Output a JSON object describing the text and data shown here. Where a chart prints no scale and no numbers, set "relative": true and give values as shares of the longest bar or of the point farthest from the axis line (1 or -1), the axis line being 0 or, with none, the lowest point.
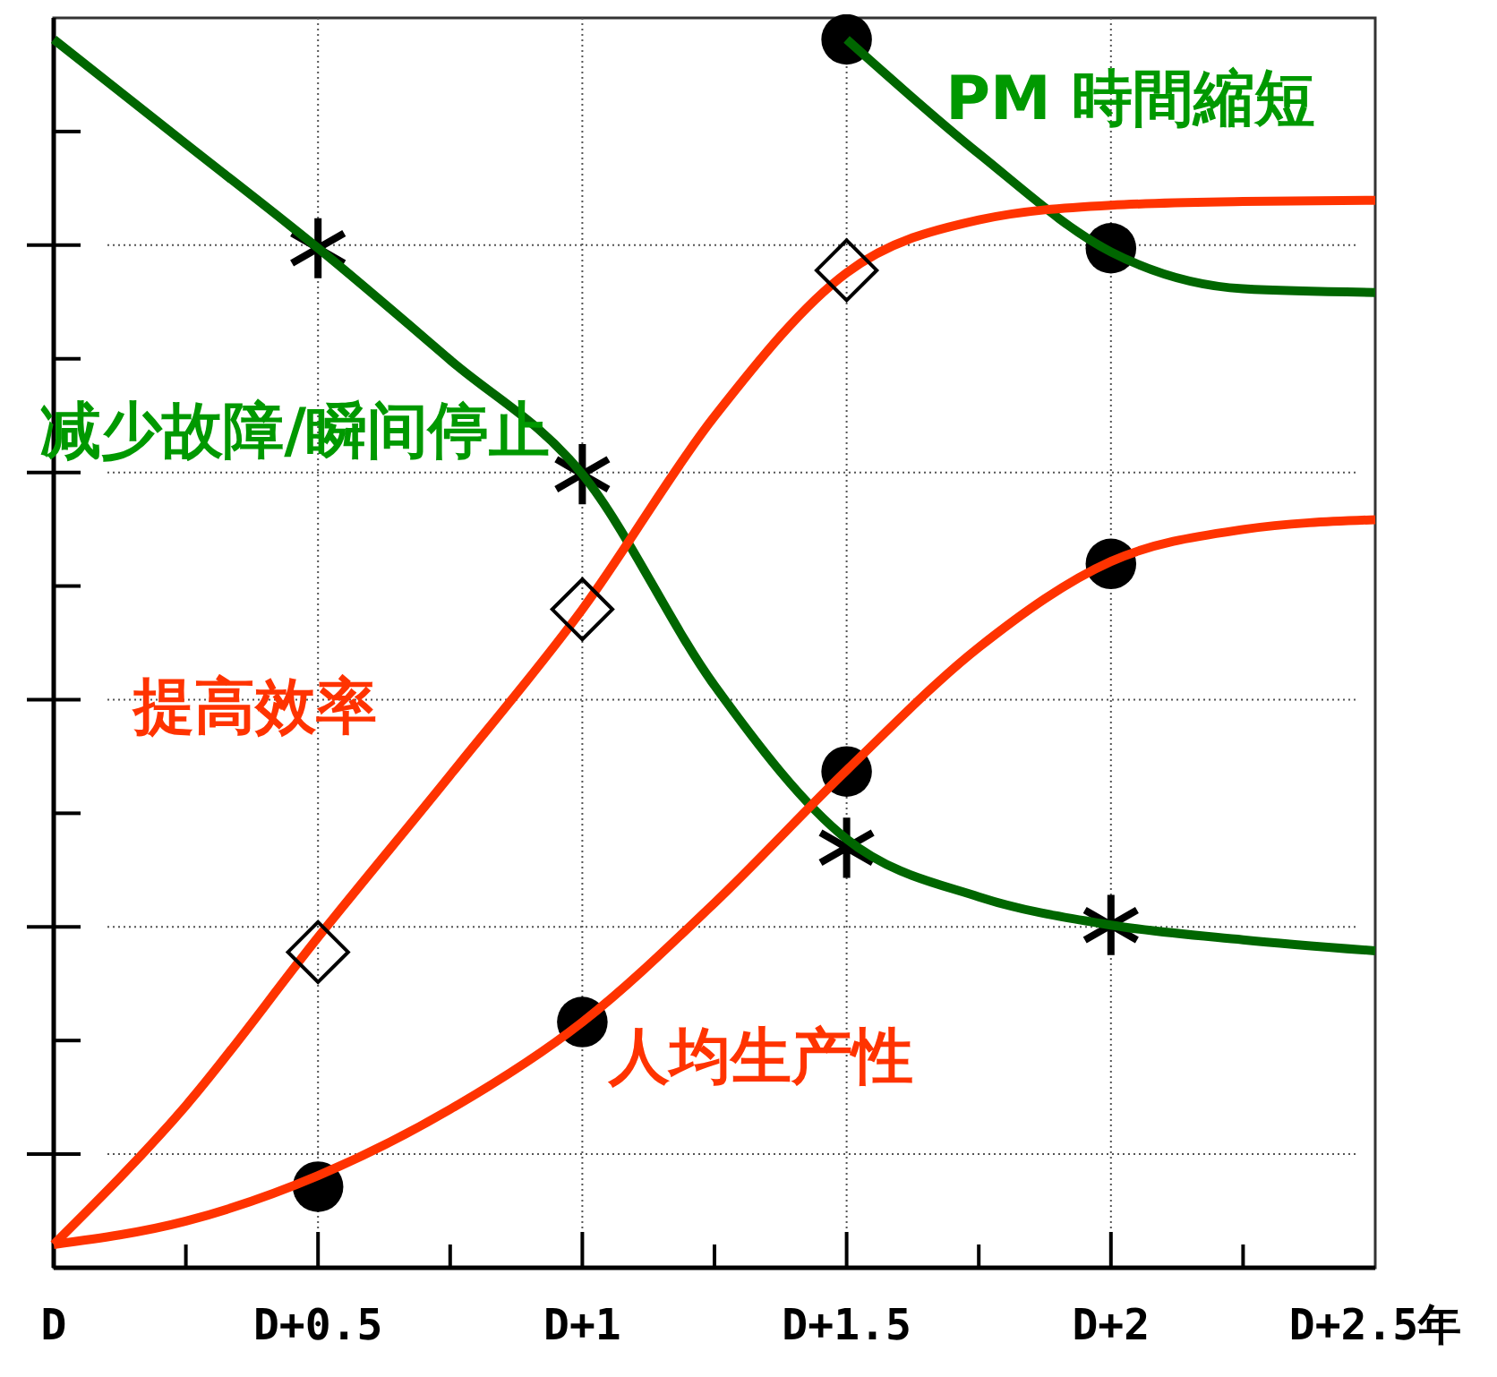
{
  "chart_data": {
    "type": "line",
    "relative": true,
    "grid": true,
    "line_style": "solid",
    "categories": [
      "D",
      null,
      "D+0.5",
      null,
      "D+1",
      null,
      "D+1.5",
      null,
      "D+2",
      null,
      "D+2.5年"
    ],
    "series": [
      {
        "name": "减少故障/瞬间停止",
        "color": "#006600",
        "values": [
          1,
          0.915,
          0.83,
          0.739,
          0.646,
          0.474,
          0.349,
          0.302,
          0.279,
          0.267,
          0.258
        ]
      },
      {
        "name": "PM 時間縮短",
        "color": "#006600",
        "values": [
          null,
          null,
          null,
          null,
          null,
          null,
          1,
          0.907,
          0.827,
          0.797,
          0.794
        ]
      },
      {
        "name": "提高效率",
        "color": "#ff3300",
        "values": [
          0.019,
          0.132,
          0.269,
          0.401,
          0.536,
          0.693,
          0.81,
          0.853,
          0.865,
          0.868,
          0.869
        ]
      },
      {
        "name": "人均生产性",
        "color": "#ff3300",
        "values": [
          0.019,
          0.038,
          0.075,
          0.129,
          0.2,
          0.297,
          0.405,
          0.505,
          0.575,
          0.601,
          0.609
        ]
      },
      {
        "type": "scatter",
        "color": "#000000",
        "marker": "cross",
        "values": [
          null,
          null,
          0.83,
          null,
          0.646,
          null,
          0.342,
          null,
          0.279,
          null,
          null
        ]
      },
      {
        "type": "scatter",
        "color": "#000000",
        "marker": "circle",
        "values": [
          null,
          null,
          null,
          null,
          null,
          null,
          1,
          null,
          0.83,
          null,
          null
        ]
      },
      {
        "type": "scatter",
        "color": "#000000",
        "marker": "diamond",
        "values": [
          null,
          null,
          0.257,
          null,
          0.536,
          null,
          0.812,
          null,
          null,
          null,
          null
        ]
      },
      {
        "type": "scatter",
        "color": "#000000",
        "marker": "circle",
        "values": [
          null,
          null,
          0.066,
          null,
          0.2,
          null,
          0.404,
          null,
          0.573,
          null,
          null
        ]
      }
    ]
  }
}
